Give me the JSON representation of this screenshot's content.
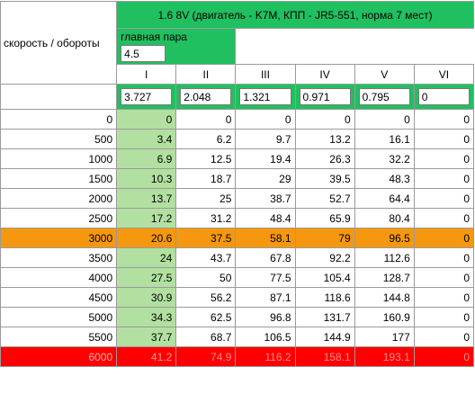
{
  "header": {
    "title": "1.6 8V (двигатель - K7M, КПП - JR5-551, норма 7 мест)",
    "row_label": "скорость / обороты",
    "main_pair_label": "главная пара",
    "main_pair_value": "4.5"
  },
  "gears": [
    {
      "name": "I",
      "ratio": "3.727"
    },
    {
      "name": "II",
      "ratio": "2.048"
    },
    {
      "name": "III",
      "ratio": "1.321"
    },
    {
      "name": "IV",
      "ratio": "0.971"
    },
    {
      "name": "V",
      "ratio": "0.795"
    },
    {
      "name": "VI",
      "ratio": "0"
    }
  ],
  "rows": [
    {
      "rpm": "0",
      "v": [
        "0",
        "0",
        "0",
        "0",
        "0",
        "0"
      ]
    },
    {
      "rpm": "500",
      "v": [
        "3.4",
        "6.2",
        "9.7",
        "13.2",
        "16.1",
        "0"
      ]
    },
    {
      "rpm": "1000",
      "v": [
        "6.9",
        "12.5",
        "19.4",
        "26.3",
        "32.2",
        "0"
      ]
    },
    {
      "rpm": "1500",
      "v": [
        "10.3",
        "18.7",
        "29",
        "39.5",
        "48.3",
        "0"
      ]
    },
    {
      "rpm": "2000",
      "v": [
        "13.7",
        "25",
        "38.7",
        "52.7",
        "64.4",
        "0"
      ]
    },
    {
      "rpm": "2500",
      "v": [
        "17.2",
        "31.2",
        "48.4",
        "65.9",
        "80.4",
        "0"
      ]
    },
    {
      "rpm": "3000",
      "v": [
        "20.6",
        "37.5",
        "58.1",
        "79",
        "96.5",
        "0"
      ],
      "highlight": "orange"
    },
    {
      "rpm": "3500",
      "v": [
        "24",
        "43.7",
        "67.8",
        "92.2",
        "112.6",
        "0"
      ]
    },
    {
      "rpm": "4000",
      "v": [
        "27.5",
        "50",
        "77.5",
        "105.4",
        "128.7",
        "0"
      ]
    },
    {
      "rpm": "4500",
      "v": [
        "30.9",
        "56.2",
        "87.1",
        "118.6",
        "144.8",
        "0"
      ]
    },
    {
      "rpm": "5000",
      "v": [
        "34.3",
        "62.5",
        "96.8",
        "131.7",
        "160.9",
        "0"
      ]
    },
    {
      "rpm": "5500",
      "v": [
        "37.7",
        "68.7",
        "106.5",
        "144.9",
        "177",
        "0"
      ]
    },
    {
      "rpm": "6000",
      "v": [
        "41.2",
        "74.9",
        "116.2",
        "158.1",
        "193.1",
        "0"
      ],
      "highlight": "red"
    }
  ],
  "colors": {
    "header_green": "#20c060",
    "first_gear_green": "#b2e0a0",
    "highlight_orange": "#f5980f",
    "highlight_red": "#ff0000"
  }
}
